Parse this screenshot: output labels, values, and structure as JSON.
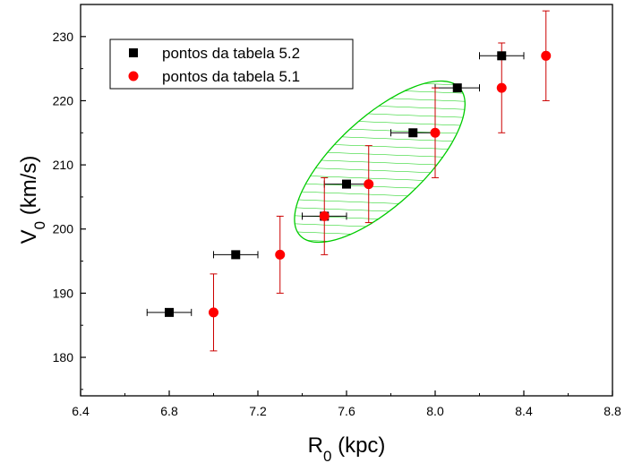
{
  "chart_data": {
    "type": "scatter",
    "title": "",
    "xlabel": {
      "main": "R",
      "sub": "0",
      "unit": " (kpc)"
    },
    "ylabel": {
      "main": "V",
      "sub": "0",
      "unit": " (km/s)"
    },
    "xlim": [
      6.4,
      8.8
    ],
    "ylim": [
      174,
      235
    ],
    "x_ticks": [
      6.4,
      6.8,
      7.2,
      7.6,
      8.0,
      8.4,
      8.8
    ],
    "x_tick_labels": [
      "6.4",
      "6.8",
      "7.2",
      "7.6",
      "8.0",
      "8.4",
      "8.8"
    ],
    "y_ticks": [
      180,
      190,
      200,
      210,
      220,
      230
    ],
    "y_tick_labels": [
      "180",
      "190",
      "200",
      "210",
      "220",
      "230"
    ],
    "grid": false,
    "legend_position": "top-left",
    "series": [
      {
        "name": "pontos da tabela 5.2",
        "marker": "square",
        "color": "#000000",
        "error_color": "#000000",
        "points": [
          {
            "x": 6.8,
            "y": 187,
            "xerr": 0.1
          },
          {
            "x": 7.1,
            "y": 196,
            "xerr": 0.1
          },
          {
            "x": 7.5,
            "y": 202,
            "xerr": 0.1
          },
          {
            "x": 7.6,
            "y": 207,
            "xerr": 0.1
          },
          {
            "x": 7.9,
            "y": 215,
            "xerr": 0.1
          },
          {
            "x": 8.1,
            "y": 222,
            "xerr": 0.1
          },
          {
            "x": 8.3,
            "y": 227,
            "xerr": 0.1
          }
        ]
      },
      {
        "name": "pontos da tabela 5.1",
        "marker": "circle",
        "color": "#ff0000",
        "error_color": "#cc0000",
        "points": [
          {
            "x": 7.0,
            "y": 187,
            "yerr": 6
          },
          {
            "x": 7.3,
            "y": 196,
            "yerr": 6
          },
          {
            "x": 7.5,
            "y": 202,
            "yerr": 6
          },
          {
            "x": 7.7,
            "y": 207,
            "yerr": 6
          },
          {
            "x": 8.0,
            "y": 215,
            "yerr": 7
          },
          {
            "x": 8.3,
            "y": 222,
            "yerr": 7
          },
          {
            "x": 8.5,
            "y": 227,
            "yerr": 7
          }
        ]
      }
    ],
    "ellipse": {
      "color": "#00cc00",
      "hatched": true,
      "center": {
        "x": 7.75,
        "y": 210.5
      },
      "vertex_a": {
        "x": 8.11,
        "y": 222
      },
      "covertex": {
        "x": 7.56,
        "y": 212.6
      }
    }
  }
}
